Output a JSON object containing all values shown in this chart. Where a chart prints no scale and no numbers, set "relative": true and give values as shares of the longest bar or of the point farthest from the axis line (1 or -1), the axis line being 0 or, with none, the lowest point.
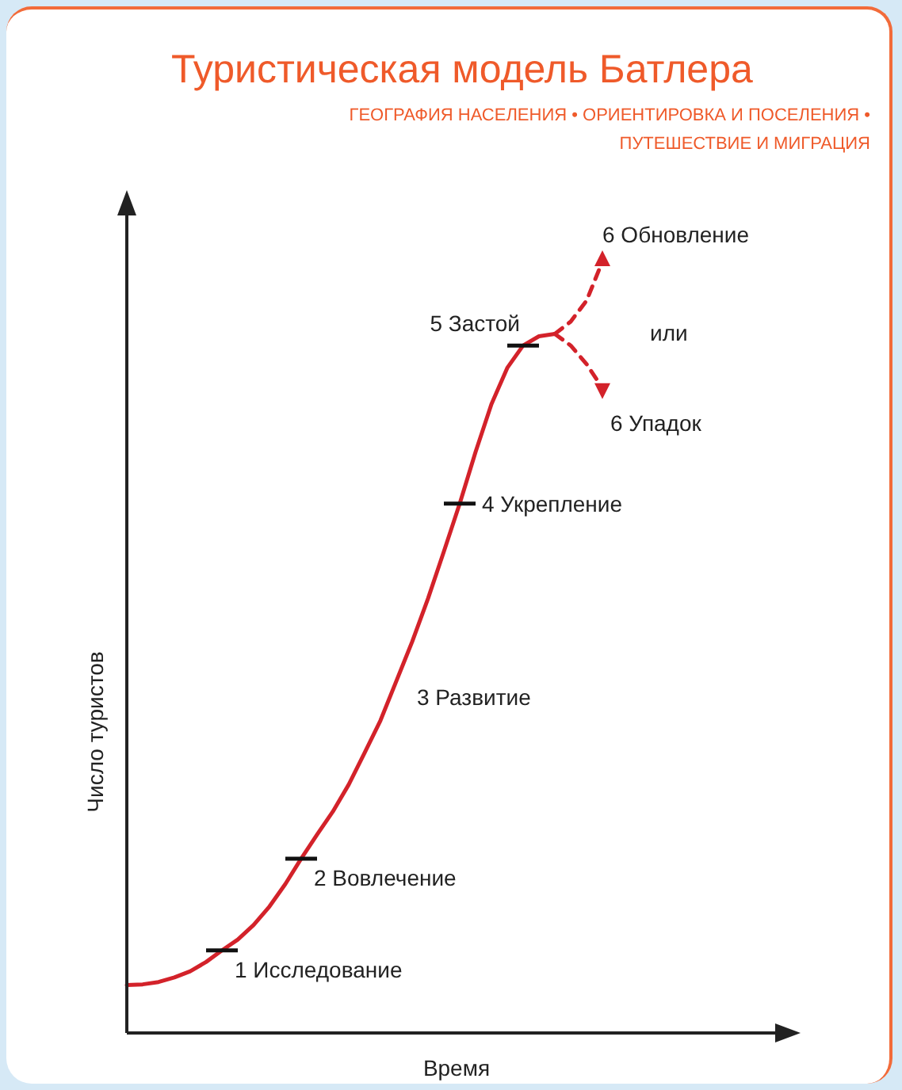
{
  "chart_data": {
    "type": "line",
    "title": "Туристическая модель Батлера",
    "subtitle": "ГЕОГРАФИЯ НАСЕЛЕНИЯ • ОРИЕНТИРОВКА И ПОСЕЛЕНИЯ • ПУТЕШЕСТВИЕ И МИГРАЦИЯ",
    "xlabel": "Время",
    "ylabel": "Число туристов",
    "relative": true,
    "tick_labels": false,
    "grid": false,
    "legend": false,
    "marker": "none",
    "categories": [
      null,
      null,
      null,
      null,
      null,
      null,
      null,
      null,
      null,
      null,
      null,
      null,
      null,
      null,
      null,
      null,
      null,
      null,
      null,
      null,
      null,
      null,
      null,
      null,
      null,
      null,
      null,
      null,
      null,
      null,
      null,
      null,
      null,
      null,
      null,
      null,
      null,
      null,
      null,
      null,
      null,
      null
    ],
    "annotations": [
      "3 Развитие",
      "или",
      "1 Исследование",
      "2 Вовлечение",
      "4 Укрепление",
      "5 Застой",
      "6 Обновление",
      "6 Упадок"
    ],
    "series": [
      {
        "color": "#d3222a",
        "line_style": "solid",
        "values": [
          0.062,
          0.063,
          0.066,
          0.072,
          0.08,
          0.092,
          0.107,
          0.121,
          0.14,
          0.164,
          0.193,
          0.226,
          0.257,
          0.287,
          0.322,
          0.363,
          0.405,
          0.456,
          0.507,
          0.563,
          0.624,
          0.686,
          0.753,
          0.815,
          0.862,
          0.891,
          0.903,
          0.906,
          null,
          null,
          null,
          null,
          null,
          null,
          null,
          null,
          null,
          null,
          null,
          null,
          null,
          null
        ]
      },
      {
        "color": "#d3222a",
        "line_style": "dashed",
        "values": [
          null,
          null,
          null,
          null,
          null,
          null,
          null,
          null,
          null,
          null,
          null,
          null,
          null,
          null,
          null,
          null,
          null,
          null,
          null,
          null,
          null,
          null,
          null,
          null,
          null,
          null,
          null,
          0.906,
          0.922,
          0.949,
          1.0,
          null,
          null,
          null,
          null,
          null,
          null,
          null,
          null,
          null,
          null,
          null
        ]
      },
      {
        "color": "#d3222a",
        "line_style": "dashed",
        "values": [
          null,
          null,
          null,
          null,
          null,
          null,
          null,
          null,
          null,
          null,
          null,
          null,
          null,
          null,
          null,
          null,
          null,
          null,
          null,
          null,
          null,
          null,
          null,
          null,
          null,
          null,
          null,
          0.906,
          0.891,
          0.867,
          0.836,
          null,
          null,
          null,
          null,
          null,
          null,
          null,
          null,
          null,
          null,
          null
        ]
      }
    ]
  }
}
